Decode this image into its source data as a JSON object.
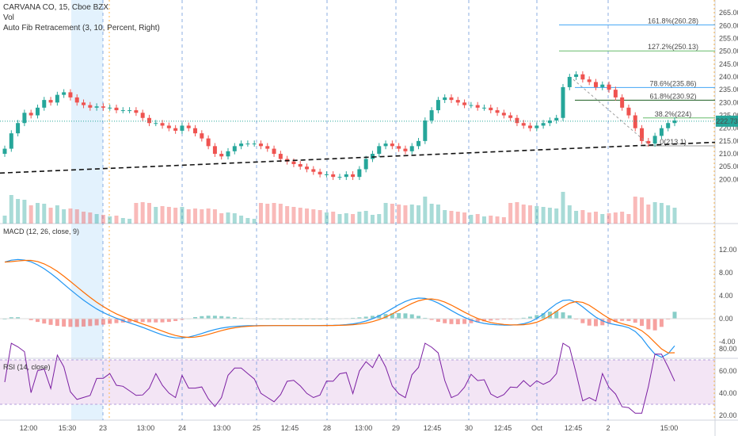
{
  "header": {
    "symbol_line": "CARVANA CO, 15, Cboe BZX",
    "vol_label": "Vol",
    "fib_label": "Auto Fib Retracement (3, 10, Percent, Right)"
  },
  "indicators": {
    "macd_label": "MACD (12, 26, close, 9)",
    "rsi_label": "RSI (14, close)"
  },
  "price_tag": "222.73",
  "colors": {
    "up": "#26a69a",
    "down": "#ef5350",
    "macd_line": "#2196f3",
    "signal_line": "#ff6d00",
    "rsi_line": "#7b1fa2",
    "rsi_band": "#f3e5f5",
    "highlight": "#e3f2fd"
  },
  "chart_data": [
    {
      "type": "candlestick",
      "title": "CARVANA CO, 15, Cboe BZX",
      "x_labels": [
        "12:00",
        "15:30",
        "23",
        "13:00",
        "24",
        "13:00",
        "25",
        "12:45",
        "28",
        "13:00",
        "29",
        "12:45",
        "30",
        "12:45",
        "Oct",
        "12:45",
        "2",
        "15:00"
      ],
      "ylim": [
        197,
        267
      ],
      "y_ticks": [
        200,
        205,
        210,
        215,
        220,
        225,
        230,
        235,
        240,
        245,
        250,
        255,
        260,
        265
      ],
      "close": [
        212,
        218,
        222,
        226,
        225,
        228,
        231,
        230,
        233,
        234,
        232,
        230,
        229,
        228,
        228.5,
        228,
        228,
        227,
        227,
        227,
        226,
        224,
        222,
        222,
        221,
        220,
        219,
        221,
        220,
        218,
        216,
        213,
        210,
        209,
        211,
        213,
        214,
        214,
        214,
        213,
        212,
        210,
        208,
        207,
        206,
        205,
        204,
        203,
        202,
        202,
        201,
        201,
        202,
        201,
        204,
        208,
        210,
        213,
        214,
        213,
        212,
        211,
        213,
        215,
        223,
        227,
        231,
        232,
        231,
        230,
        229,
        229,
        228,
        228,
        227,
        226,
        225,
        224,
        222,
        221,
        220,
        221,
        222,
        223,
        224,
        236,
        240,
        241,
        239,
        238,
        236,
        237,
        235,
        232,
        228,
        225,
        220,
        215,
        214,
        217,
        220,
        222,
        223
      ],
      "fib_levels": [
        {
          "label": "161.8%(260.28)",
          "value": 260.28
        },
        {
          "label": "127.2%(250.13)",
          "value": 250.13
        },
        {
          "label": "78.6%(235.86)",
          "value": 235.86
        },
        {
          "label": "61.8%(230.92)",
          "value": 230.92
        },
        {
          "label": "38.2%(224)",
          "value": 224
        },
        {
          "label": "0(213.1)",
          "value": 213.1
        }
      ],
      "last_price": 222.73
    },
    {
      "type": "line",
      "title": "MACD (12, 26, close, 9)",
      "series": [
        {
          "name": "MACD"
        },
        {
          "name": "Signal"
        }
      ],
      "ylim": [
        -6,
        16
      ],
      "y_ticks": [
        -4,
        0,
        4,
        8,
        12,
        16
      ]
    },
    {
      "type": "line",
      "title": "RSI (14, close)",
      "series": [
        {
          "name": "RSI"
        }
      ],
      "ylim": [
        17,
        88
      ],
      "y_ticks": [
        20,
        40,
        60,
        80
      ],
      "bands": [
        30,
        70
      ]
    }
  ]
}
